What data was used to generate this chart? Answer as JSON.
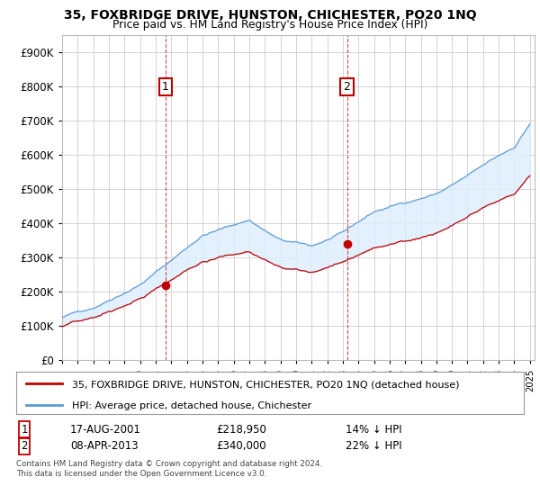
{
  "title": "35, FOXBRIDGE DRIVE, HUNSTON, CHICHESTER, PO20 1NQ",
  "subtitle": "Price paid vs. HM Land Registry's House Price Index (HPI)",
  "hpi_label": "HPI: Average price, detached house, Chichester",
  "property_label": "35, FOXBRIDGE DRIVE, HUNSTON, CHICHESTER, PO20 1NQ (detached house)",
  "footer1": "Contains HM Land Registry data © Crown copyright and database right 2024.",
  "footer2": "This data is licensed under the Open Government Licence v3.0.",
  "sale1_date": "17-AUG-2001",
  "sale1_price": "£218,950",
  "sale1_hpi": "14% ↓ HPI",
  "sale2_date": "08-APR-2013",
  "sale2_price": "£340,000",
  "sale2_hpi": "22% ↓ HPI",
  "hpi_color": "#5b9bd5",
  "property_color": "#c00000",
  "fill_color": "#ddeeff",
  "grid_color": "#cccccc",
  "background_color": "#ffffff",
  "ylim": [
    0,
    950000
  ],
  "yticks": [
    0,
    100000,
    200000,
    300000,
    400000,
    500000,
    600000,
    700000,
    800000,
    900000
  ],
  "xlim_start": 1995.0,
  "xlim_end": 2025.3,
  "sale1_x": 2001.625,
  "sale1_y": 218950,
  "sale2_x": 2013.27,
  "sale2_y": 340000,
  "annot_color": "#c00000"
}
